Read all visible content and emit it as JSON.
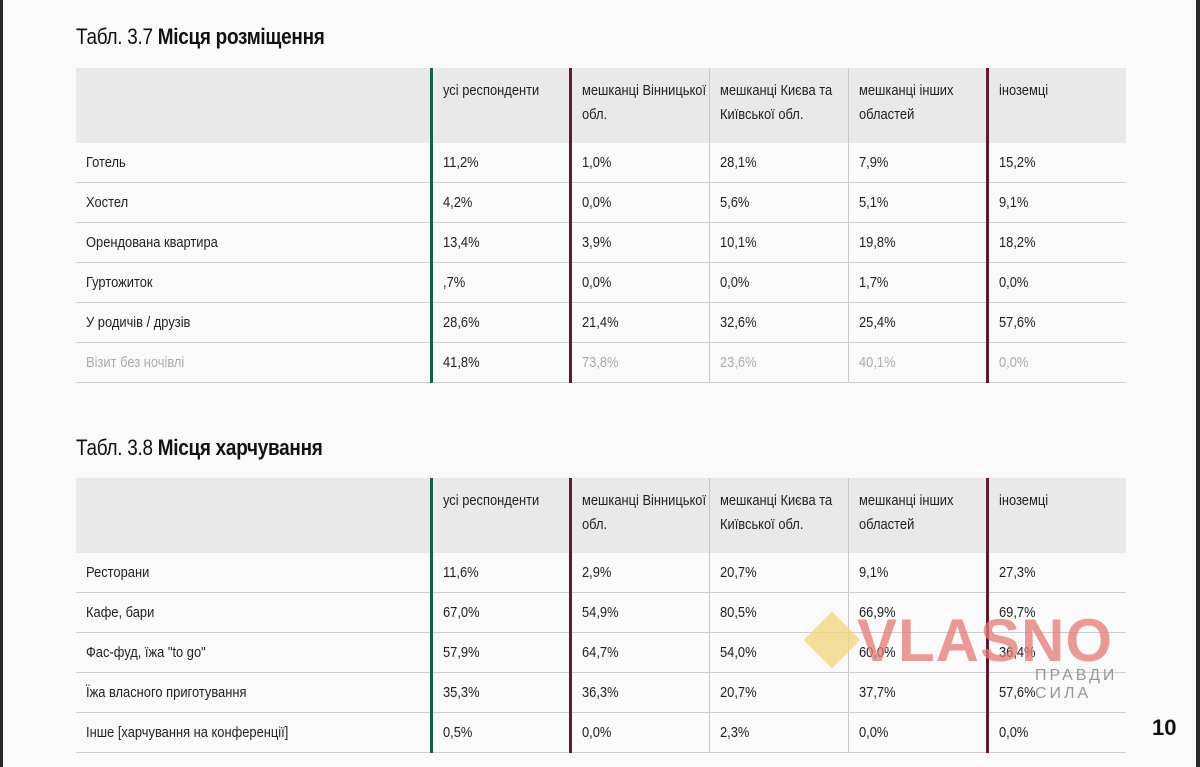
{
  "table1": {
    "title_prefix": "Табл. 3.7",
    "title_bold": "Місця розміщення",
    "columns": [
      "",
      "усі респонденти",
      "мешканці Вінницької обл.",
      "мешканці Києва та Київської обл.",
      "мешканці  інших областей",
      "іноземці"
    ],
    "rows": [
      {
        "label": "Готель",
        "values": [
          "11,2%",
          "1,0%",
          "28,1%",
          "7,9%",
          "15,2%"
        ]
      },
      {
        "label": "Хостел",
        "values": [
          "4,2%",
          "0,0%",
          "5,6%",
          "5,1%",
          "9,1%"
        ]
      },
      {
        "label": "Орендована квартира",
        "values": [
          "13,4%",
          "3,9%",
          "10,1%",
          "19,8%",
          "18,2%"
        ]
      },
      {
        "label": "Гуртожиток",
        "values": [
          ",7%",
          "0,0%",
          "0,0%",
          "1,7%",
          "0,0%"
        ]
      },
      {
        "label": "У родичів / друзів",
        "values": [
          "28,6%",
          "21,4%",
          "32,6%",
          "25,4%",
          "57,6%"
        ]
      },
      {
        "label": "Візит без ночівлі",
        "values": [
          "41,8%",
          "73,8%",
          "23,6%",
          "40,1%",
          "0,0%"
        ]
      }
    ]
  },
  "table2": {
    "title_prefix": "Табл. 3.8",
    "title_bold": "Місця харчування",
    "columns": [
      "",
      "усі респонденти",
      "мешканці Вінницької обл.",
      "мешканці Києва та Київської обл.",
      "мешканці  інших областей",
      "іноземці"
    ],
    "rows": [
      {
        "label": "Ресторани",
        "values": [
          "11,6%",
          "2,9%",
          "20,7%",
          "9,1%",
          "27,3%"
        ]
      },
      {
        "label": "Кафе, бари",
        "values": [
          "67,0%",
          "54,9%",
          "80,5%",
          "66,9%",
          "69,7%"
        ]
      },
      {
        "label": "Фас-фуд, їжа \"to go\"",
        "values": [
          "57,9%",
          "64,7%",
          "54,0%",
          "60,0%",
          "36,4%"
        ]
      },
      {
        "label": "Їжа власного приготування",
        "values": [
          "35,3%",
          "36,3%",
          "20,7%",
          "37,7%",
          "57,6%"
        ]
      },
      {
        "label": "Інше [харчування на конференції]",
        "values": [
          "0,5%",
          "0,0%",
          "2,3%",
          "0,0%",
          "0,0%"
        ]
      }
    ]
  },
  "watermark": {
    "brand": "VLASNO",
    "tagline": "ПРАВДИ СИЛА",
    "brand_color": "#e47a76",
    "diamond_color": "#f5d37a"
  },
  "page_number": "10"
}
